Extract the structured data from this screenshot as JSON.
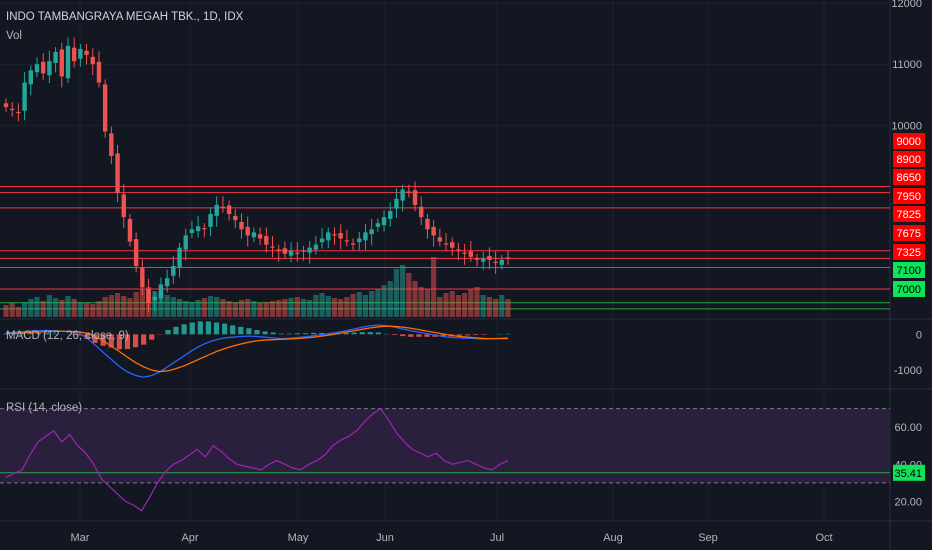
{
  "header": {
    "title": "INDO TAMBANGRAYA MEGAH TBK., 1D, IDX",
    "volume_label": "Vol",
    "macd_label": "MACD (12, 26, close, 9)",
    "rsi_label": "RSI (14, close)"
  },
  "colors": {
    "background": "#131722",
    "up": "#26a69a",
    "down": "#ef5350",
    "resistance": "#f23645",
    "support": "#22ab3e",
    "macd_line": "#2962ff",
    "signal_line": "#ff6d00",
    "rsi_line": "#9c27b0",
    "rsi_band": "#2a1f3d"
  },
  "chart_data": {
    "type": "candlestick",
    "price_axis": {
      "ticks": [
        12000,
        11000,
        10000
      ],
      "range": [
        6850,
        12050
      ]
    },
    "time_axis": {
      "labels": [
        "Mar",
        "Apr",
        "May",
        "Jun",
        "Jul",
        "Aug",
        "Sep",
        "Oct"
      ]
    },
    "price_levels": [
      {
        "value": 9000,
        "label": "9000",
        "kind": "resistance"
      },
      {
        "value": 8900,
        "label": "8900",
        "kind": "resistance"
      },
      {
        "value": 8650,
        "label": "8650",
        "kind": "resistance"
      },
      {
        "value": 7950,
        "label": "7950",
        "kind": "resistance"
      },
      {
        "value": 7825,
        "label": "7825",
        "kind": "resistance"
      },
      {
        "value": 7675,
        "label": "7675",
        "kind": "resistance"
      },
      {
        "value": 7325,
        "label": "7325",
        "kind": "resistance"
      },
      {
        "value": 7100,
        "label": "7100",
        "kind": "support"
      },
      {
        "value": 7000,
        "label": "7000",
        "kind": "support"
      }
    ],
    "closes": [
      10300,
      10250,
      10200,
      10700,
      10900,
      11000,
      10850,
      11050,
      11200,
      10800,
      11300,
      11050,
      11250,
      11150,
      11000,
      10700,
      9900,
      9500,
      8900,
      8500,
      8100,
      7700,
      7350,
      7100,
      7200,
      7400,
      7500,
      7700,
      8000,
      8200,
      8300,
      8350,
      8300,
      8550,
      8700,
      8650,
      8550,
      8450,
      8300,
      8200,
      8250,
      8150,
      8050,
      8000,
      7950,
      7900,
      7950,
      7900,
      7950,
      8000,
      8050,
      8150,
      8250,
      8200,
      8150,
      8100,
      8050,
      8150,
      8250,
      8300,
      8400,
      8500,
      8600,
      8800,
      8950,
      8900,
      8700,
      8500,
      8300,
      8200,
      8100,
      8050,
      8000,
      7950,
      7900,
      7850,
      7800,
      7825,
      7800,
      7750,
      7800,
      7825
    ],
    "volumes": [
      12,
      14,
      10,
      15,
      18,
      20,
      16,
      22,
      19,
      17,
      21,
      18,
      15,
      14,
      13,
      16,
      20,
      22,
      24,
      21,
      19,
      25,
      28,
      30,
      26,
      24,
      22,
      20,
      18,
      16,
      15,
      17,
      19,
      21,
      20,
      18,
      16,
      15,
      17,
      18,
      16,
      14,
      15,
      16,
      17,
      18,
      19,
      20,
      18,
      17,
      22,
      24,
      21,
      19,
      18,
      20,
      23,
      25,
      22,
      26,
      28,
      32,
      36,
      48,
      52,
      44,
      36,
      30,
      28,
      60,
      20,
      24,
      26,
      22,
      24,
      28,
      30,
      22,
      20,
      18,
      22,
      18
    ],
    "macd": {
      "axis_ticks": [
        0,
        -1000
      ],
      "range": [
        -1500,
        400
      ],
      "macd_line": [
        40,
        60,
        70,
        90,
        100,
        110,
        100,
        90,
        70,
        40,
        -100,
        -300,
        -500,
        -700,
        -900,
        -1050,
        -1150,
        -1200,
        -1150,
        -1050,
        -900,
        -750,
        -600,
        -450,
        -320,
        -220,
        -150,
        -100,
        -80,
        -60,
        -50,
        -60,
        -80,
        -100,
        -120,
        -110,
        -90,
        -70,
        -40,
        -10,
        20,
        60,
        100,
        150,
        200,
        240,
        260,
        240,
        200,
        150,
        100,
        60,
        20,
        -20,
        -60,
        -90,
        -100,
        -110,
        -120,
        -130,
        -120,
        -110,
        -100
      ],
      "signal_line": [
        20,
        30,
        40,
        55,
        65,
        75,
        85,
        85,
        80,
        70,
        30,
        -60,
        -180,
        -330,
        -480,
        -640,
        -790,
        -910,
        -1000,
        -1040,
        -1020,
        -960,
        -880,
        -780,
        -680,
        -580,
        -480,
        -400,
        -330,
        -270,
        -220,
        -180,
        -160,
        -150,
        -140,
        -130,
        -120,
        -100,
        -80,
        -50,
        -20,
        20,
        60,
        100,
        140,
        180,
        210,
        230,
        220,
        200,
        170,
        130,
        90,
        50,
        10,
        -30,
        -60,
        -80,
        -100,
        -115,
        -120,
        -120,
        -115
      ],
      "histogram": [
        20,
        30,
        30,
        35,
        35,
        35,
        15,
        5,
        -10,
        -30,
        -130,
        -240,
        -320,
        -370,
        -420,
        -410,
        -360,
        -290,
        -150,
        -10,
        120,
        210,
        280,
        330,
        360,
        360,
        330,
        300,
        250,
        210,
        170,
        120,
        80,
        50,
        20,
        20,
        30,
        30,
        40,
        40,
        40,
        40,
        40,
        50,
        60,
        60,
        50,
        10,
        -20,
        -50,
        -70,
        -70,
        -70,
        -70,
        -70,
        -60,
        -40,
        -30,
        -20,
        -15,
        0,
        10,
        15
      ]
    },
    "rsi": {
      "axis_ticks": [
        60.0,
        40.0,
        20.0
      ],
      "range": [
        10,
        80
      ],
      "overbought": 70,
      "oversold": 30,
      "current": "35.41",
      "values": [
        33,
        35,
        37,
        45,
        52,
        55,
        58,
        52,
        56,
        50,
        46,
        40,
        32,
        28,
        24,
        20,
        18,
        15,
        22,
        30,
        36,
        40,
        42,
        45,
        48,
        44,
        50,
        47,
        43,
        40,
        39,
        38,
        37,
        40,
        42,
        40,
        38,
        37,
        40,
        42,
        45,
        50,
        53,
        55,
        58,
        63,
        67,
        70,
        64,
        57,
        52,
        48,
        46,
        44,
        46,
        42,
        40,
        41,
        42,
        40,
        38,
        37,
        40,
        42
      ]
    }
  }
}
